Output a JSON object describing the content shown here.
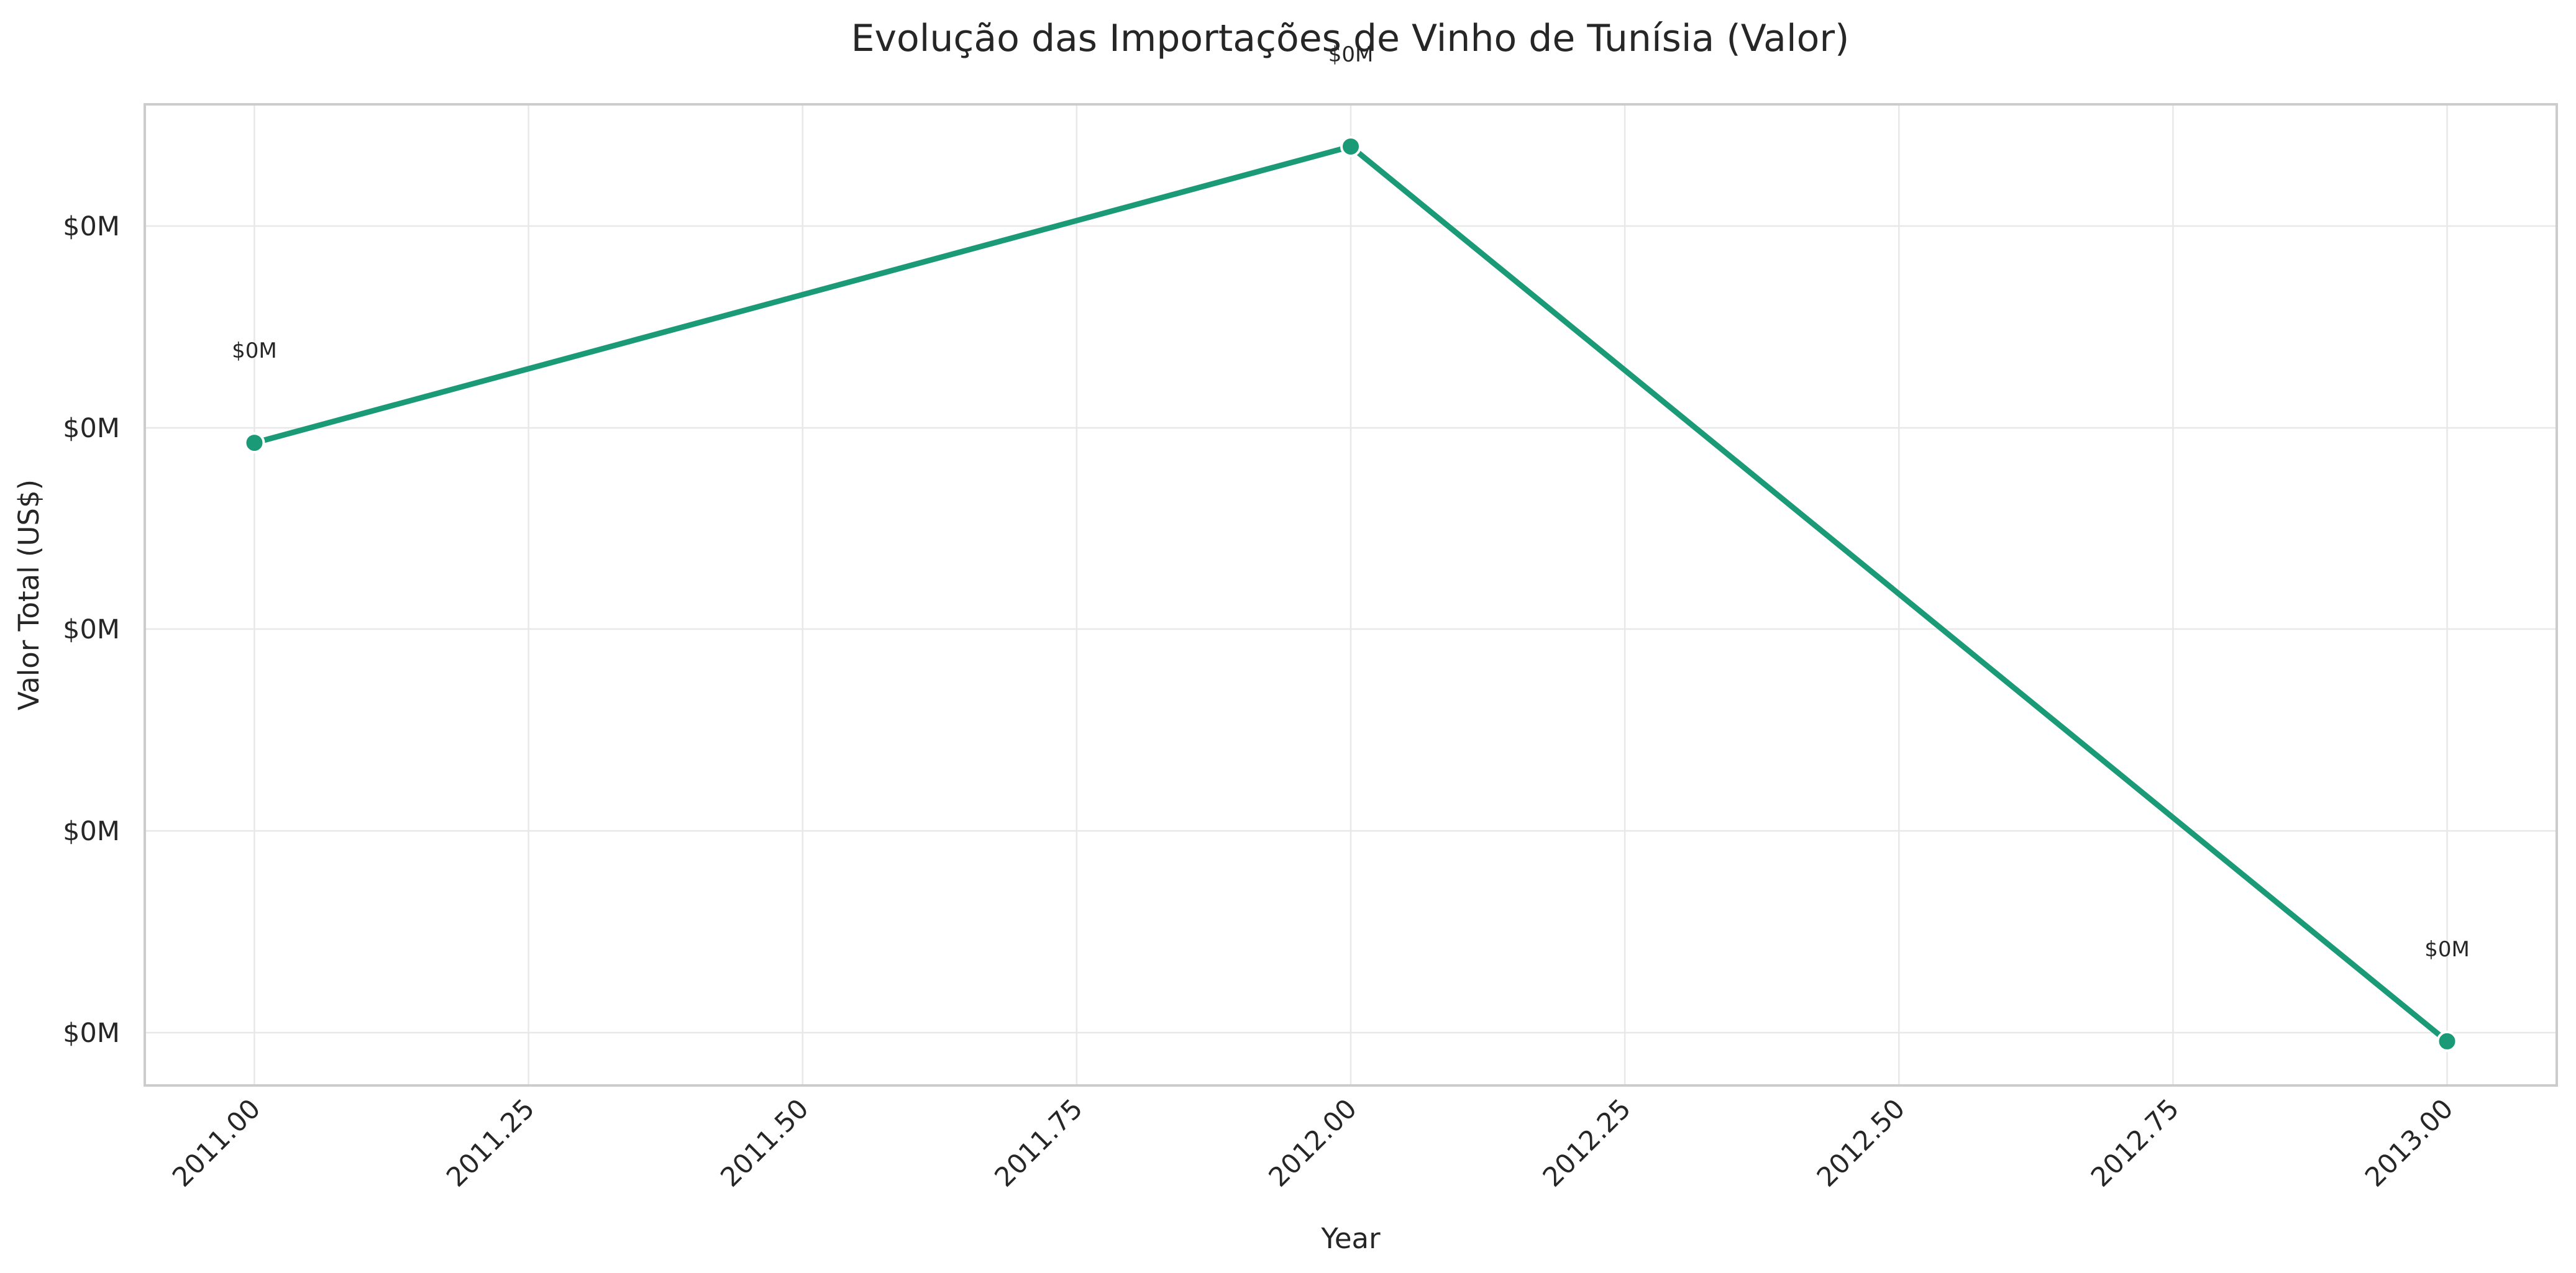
{
  "chart_data": {
    "type": "line",
    "title": "Evolução das Importações de Vinho de Tunísia (Valor)",
    "xlabel": "Year",
    "ylabel": "Valor Total (US$)",
    "x_ticks": [
      "2011.00",
      "2011.25",
      "2011.50",
      "2011.75",
      "2012.00",
      "2012.25",
      "2012.50",
      "2012.75",
      "2013.00"
    ],
    "y_ticks": [
      "$0M",
      "$0M",
      "$0M",
      "$0M",
      "$0M"
    ],
    "xlim": [
      2010.9,
      2013.1
    ],
    "ylim": [
      0,
      1
    ],
    "grid": true,
    "series": [
      {
        "x": [
          2011,
          2012,
          2013
        ],
        "y_fraction_of_axis": [
          0.655,
          0.957,
          0.045
        ],
        "data_labels": [
          "$0M",
          "$0M",
          "$0M"
        ]
      }
    ],
    "line_color": "#1b9a77"
  }
}
